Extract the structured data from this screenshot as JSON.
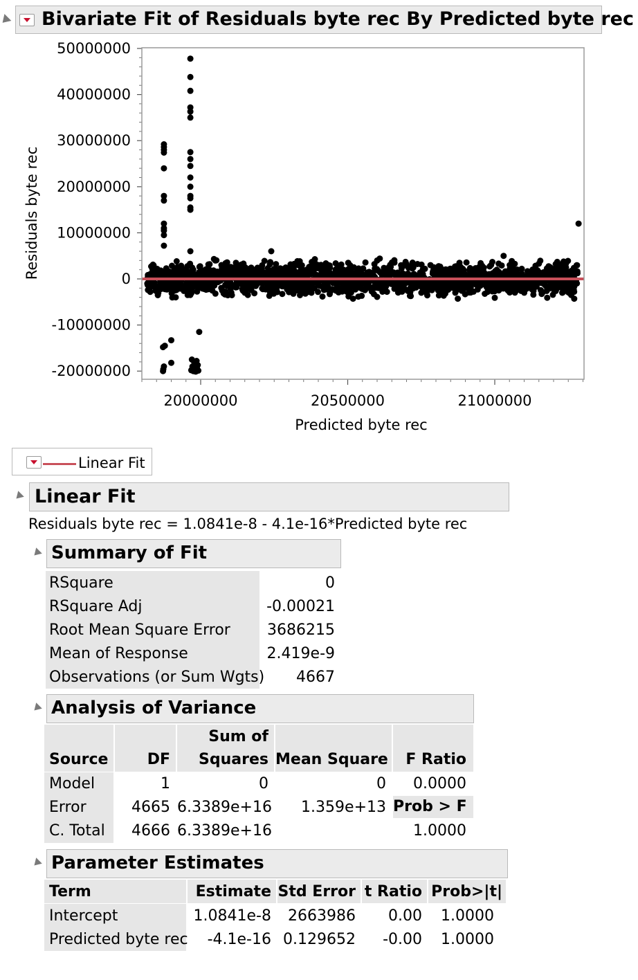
{
  "bivariate": {
    "title": "Bivariate Fit of Residuals byte rec By Predicted byte rec"
  },
  "chart_data": {
    "type": "scatter",
    "title": "",
    "xlabel": "Predicted byte rec",
    "ylabel": "Residuals byte rec",
    "xlim": [
      19800000,
      21300000
    ],
    "ylim": [
      -22000000,
      50000000
    ],
    "x_ticks": [
      20000000,
      20500000,
      21000000
    ],
    "x_tick_labels": [
      "20000000",
      "20500000",
      "21000000"
    ],
    "y_ticks": [
      50000000,
      40000000,
      30000000,
      20000000,
      10000000,
      0,
      -10000000,
      -20000000
    ],
    "y_tick_labels": [
      "50000000",
      "40000000",
      "30000000",
      "20000000",
      "10000000",
      "0",
      "-10000000",
      "-20000000"
    ],
    "grid": false,
    "fit_line": {
      "intercept": 1.0841e-08,
      "slope": -4.1e-16,
      "color": "#c8505a"
    },
    "point_color": "#000000",
    "points": [
      [
        19875000,
        29200000
      ],
      [
        19875000,
        28600000
      ],
      [
        19875000,
        28000000
      ],
      [
        19875000,
        27400000
      ],
      [
        19875000,
        24000000
      ],
      [
        19875000,
        18000000
      ],
      [
        19875000,
        17000000
      ],
      [
        19875000,
        12000000
      ],
      [
        19875000,
        11000000
      ],
      [
        19875000,
        10500000
      ],
      [
        19875000,
        9500000
      ],
      [
        19875000,
        7200000
      ],
      [
        19878000,
        -14500000
      ],
      [
        19872000,
        -14800000
      ],
      [
        19900000,
        -13300000
      ],
      [
        19875000,
        -19000000
      ],
      [
        19873000,
        -19600000
      ],
      [
        19872000,
        -20000000
      ],
      [
        19900000,
        -18200000
      ],
      [
        19915000,
        -4000000
      ],
      [
        19965000,
        47800000
      ],
      [
        19965000,
        43800000
      ],
      [
        19965000,
        40800000
      ],
      [
        19965000,
        37200000
      ],
      [
        19965000,
        36300000
      ],
      [
        19965000,
        35000000
      ],
      [
        19965000,
        27500000
      ],
      [
        19965000,
        26000000
      ],
      [
        19965000,
        24500000
      ],
      [
        19965000,
        22000000
      ],
      [
        19965000,
        20000000
      ],
      [
        19965000,
        18000000
      ],
      [
        19965000,
        17500000
      ],
      [
        19965000,
        15500000
      ],
      [
        19965000,
        15000000
      ],
      [
        19965000,
        6000000
      ],
      [
        19995000,
        -11500000
      ],
      [
        19970000,
        -17500000
      ],
      [
        19978000,
        -18000000
      ],
      [
        19985000,
        -18300000
      ],
      [
        19990000,
        -18700000
      ],
      [
        19972000,
        -19000000
      ],
      [
        19980000,
        -19300000
      ],
      [
        19988000,
        -19500000
      ],
      [
        19968000,
        -19800000
      ],
      [
        19975000,
        -20000000
      ],
      [
        19983000,
        -20100000
      ],
      [
        19992000,
        -19900000
      ],
      [
        19986000,
        -17800000
      ],
      [
        20240000,
        6000000
      ],
      [
        20120000,
        3500000
      ],
      [
        20050000,
        4000000
      ],
      [
        20330000,
        3000000
      ],
      [
        20600000,
        4000000
      ],
      [
        20880000,
        3500000
      ],
      [
        21030000,
        5000000
      ],
      [
        21150000,
        3300000
      ],
      [
        20400000,
        3000000
      ],
      [
        20700000,
        3200000
      ],
      [
        20600000,
        -3900000
      ],
      [
        20150000,
        -3000000
      ],
      [
        21000000,
        -4100000
      ],
      [
        21270000,
        -4300000
      ],
      [
        21260000,
        -3500000
      ],
      [
        20050000,
        -3200000
      ],
      [
        21285000,
        12000000
      ]
    ]
  },
  "legend": {
    "label": "Linear Fit"
  },
  "linear_fit": {
    "title": "Linear Fit",
    "equation": "Residuals byte rec = 1.0841e-8 - 4.1e-16*Predicted byte rec"
  },
  "summary_of_fit": {
    "title": "Summary of Fit",
    "rows": [
      {
        "label": "RSquare",
        "value": "0"
      },
      {
        "label": "RSquare Adj",
        "value": "-0.00021"
      },
      {
        "label": "Root Mean Square Error",
        "value": "3686215"
      },
      {
        "label": "Mean of Response",
        "value": "2.419e-9"
      },
      {
        "label": "Observations (or Sum Wgts)",
        "value": "4667"
      }
    ]
  },
  "anova": {
    "title": "Analysis of Variance",
    "headers": {
      "source": "Source",
      "df": "DF",
      "ss_line1": "Sum of",
      "ss_line2": "Squares",
      "ms": "Mean Square",
      "f": "F Ratio",
      "probf": "Prob > F"
    },
    "rows": [
      {
        "source": "Model",
        "df": "1",
        "ss": "0",
        "ms": "0",
        "f": "0.0000"
      },
      {
        "source": "Error",
        "df": "4665",
        "ss": "6.3389e+16",
        "ms": "1.359e+13",
        "f": ""
      },
      {
        "source": "C. Total",
        "df": "4666",
        "ss": "6.3389e+16",
        "ms": "",
        "f": "1.0000"
      }
    ]
  },
  "parameter_estimates": {
    "title": "Parameter Estimates",
    "headers": {
      "term": "Term",
      "estimate": "Estimate",
      "stderr": "Std Error",
      "tratio": "t Ratio",
      "prob": "Prob>|t|"
    },
    "rows": [
      {
        "term": "Intercept",
        "estimate": "1.0841e-8",
        "stderr": "2663986",
        "tratio": "0.00",
        "prob": "1.0000"
      },
      {
        "term": "Predicted byte rec",
        "estimate": "-4.1e-16",
        "stderr": "0.129652",
        "tratio": "-0.00",
        "prob": "1.0000"
      }
    ]
  }
}
